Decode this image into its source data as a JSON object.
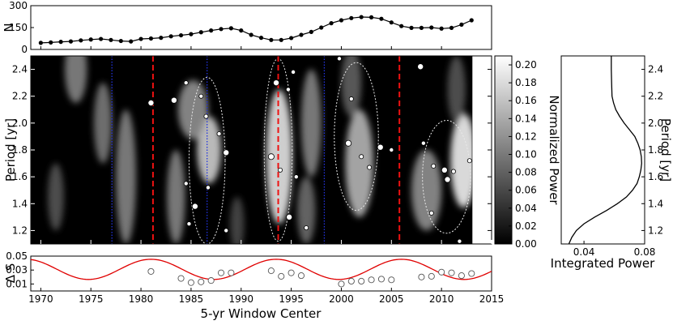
{
  "chart_data": [
    {
      "type": "line",
      "panel": "top",
      "ylabel": "N",
      "xlim": [
        1969,
        2015
      ],
      "ylim": [
        0,
        300
      ],
      "yticks": [
        "0",
        "150",
        "300"
      ],
      "x": [
        1970,
        1971,
        1972,
        1973,
        1974,
        1975,
        1976,
        1977,
        1978,
        1979,
        1980,
        1981,
        1982,
        1983,
        1984,
        1985,
        1986,
        1987,
        1988,
        1989,
        1990,
        1991,
        1992,
        1993,
        1994,
        1995,
        1996,
        1997,
        1998,
        1999,
        2000,
        2001,
        2002,
        2003,
        2004,
        2005,
        2006,
        2007,
        2008,
        2009,
        2010,
        2011,
        2012,
        2013
      ],
      "values": [
        45,
        48,
        52,
        55,
        62,
        68,
        72,
        65,
        58,
        55,
        72,
        75,
        80,
        90,
        97,
        105,
        118,
        130,
        140,
        145,
        130,
        100,
        80,
        65,
        65,
        78,
        100,
        120,
        150,
        180,
        200,
        215,
        222,
        220,
        210,
        185,
        160,
        148,
        148,
        150,
        143,
        148,
        170,
        200
      ]
    },
    {
      "type": "heatmap",
      "panel": "main",
      "xlabel": "5-yr Window Center",
      "ylabel": "Period [yr]",
      "xlim": [
        1969,
        2015
      ],
      "ylim": [
        1.1,
        2.5
      ],
      "xticks": [
        "1970",
        "1975",
        "1980",
        "1985",
        "1990",
        "1995",
        "2000",
        "2005",
        "2010",
        "2015"
      ],
      "yticks": [
        "1.2",
        "1.4",
        "1.6",
        "1.8",
        "2.0",
        "2.2",
        "2.4"
      ],
      "colorbar": {
        "label": "Normalized Power",
        "range": [
          0,
          0.21
        ],
        "ticks": [
          "0.00",
          "0.02",
          "0.04",
          "0.06",
          "0.08",
          "0.10",
          "0.12",
          "0.14",
          "0.16",
          "0.18",
          "0.20"
        ]
      },
      "red_dashed_lines_x": [
        1981.2,
        1993.7,
        2005.8
      ],
      "blue_dotted_lines_x": [
        1977.1,
        1986.6,
        1998.3,
        2013.8
      ],
      "ridges": [
        {
          "x": 1993.8,
          "y": 1.75,
          "amp": 0.95,
          "sx": 1.3,
          "sy": 0.5
        },
        {
          "x": 1986.8,
          "y": 1.8,
          "amp": 0.85,
          "sx": 1.2,
          "sy": 0.25
        },
        {
          "x": 1985.2,
          "y": 2.1,
          "amp": 0.6,
          "sx": 1.5,
          "sy": 0.22
        },
        {
          "x": 1983.5,
          "y": 1.45,
          "amp": 0.55,
          "sx": 0.9,
          "sy": 0.35
        },
        {
          "x": 1978.5,
          "y": 1.6,
          "amp": 0.55,
          "sx": 1.0,
          "sy": 0.5
        },
        {
          "x": 1976.2,
          "y": 2.0,
          "amp": 0.5,
          "sx": 0.9,
          "sy": 0.3
        },
        {
          "x": 1973.5,
          "y": 2.4,
          "amp": 0.55,
          "sx": 1.1,
          "sy": 0.25
        },
        {
          "x": 1971.5,
          "y": 1.45,
          "amp": 0.35,
          "sx": 0.8,
          "sy": 0.25
        },
        {
          "x": 1997.0,
          "y": 2.0,
          "amp": 0.55,
          "sx": 1.0,
          "sy": 0.4
        },
        {
          "x": 1996.5,
          "y": 1.35,
          "amp": 0.45,
          "sx": 0.9,
          "sy": 0.25
        },
        {
          "x": 2001.8,
          "y": 1.7,
          "amp": 0.75,
          "sx": 1.4,
          "sy": 0.4
        },
        {
          "x": 2001.0,
          "y": 2.3,
          "amp": 0.4,
          "sx": 1.0,
          "sy": 0.25
        },
        {
          "x": 2008.5,
          "y": 1.5,
          "amp": 0.6,
          "sx": 1.5,
          "sy": 0.3
        },
        {
          "x": 2012.2,
          "y": 1.72,
          "amp": 1.0,
          "sx": 1.3,
          "sy": 0.35
        },
        {
          "x": 2011.5,
          "y": 2.25,
          "amp": 0.35,
          "sx": 0.9,
          "sy": 0.25
        },
        {
          "x": 1989.6,
          "y": 1.25,
          "amp": 0.3,
          "sx": 0.7,
          "sy": 0.2
        }
      ],
      "contours": [
        {
          "x": 1993.7,
          "y": 1.8,
          "rx": 1.4,
          "ry": 0.68
        },
        {
          "x": 1986.6,
          "y": 1.72,
          "rx": 1.8,
          "ry": 0.62
        },
        {
          "x": 2001.5,
          "y": 1.9,
          "rx": 2.2,
          "ry": 0.55
        },
        {
          "x": 2010.5,
          "y": 1.6,
          "rx": 2.4,
          "ry": 0.42
        }
      ],
      "dots": [
        {
          "x": 1981.0,
          "y": 2.15
        },
        {
          "x": 1984.5,
          "y": 2.3
        },
        {
          "x": 1986.0,
          "y": 2.2
        },
        {
          "x": 1983.3,
          "y": 2.17
        },
        {
          "x": 1986.5,
          "y": 2.05
        },
        {
          "x": 1987.8,
          "y": 1.92
        },
        {
          "x": 1988.5,
          "y": 1.78
        },
        {
          "x": 1984.5,
          "y": 1.55
        },
        {
          "x": 1986.7,
          "y": 1.52
        },
        {
          "x": 1985.4,
          "y": 1.38
        },
        {
          "x": 1984.8,
          "y": 1.25
        },
        {
          "x": 1988.5,
          "y": 1.2
        },
        {
          "x": 1993.5,
          "y": 2.3
        },
        {
          "x": 1995.2,
          "y": 2.38
        },
        {
          "x": 1994.7,
          "y": 2.25
        },
        {
          "x": 1993.0,
          "y": 1.75
        },
        {
          "x": 1993.9,
          "y": 1.65
        },
        {
          "x": 1995.5,
          "y": 1.6
        },
        {
          "x": 1994.8,
          "y": 1.3
        },
        {
          "x": 1996.5,
          "y": 1.22
        },
        {
          "x": 2001.0,
          "y": 2.18
        },
        {
          "x": 2000.7,
          "y": 1.85
        },
        {
          "x": 2002.0,
          "y": 1.75
        },
        {
          "x": 2002.8,
          "y": 1.67
        },
        {
          "x": 2003.9,
          "y": 1.82
        },
        {
          "x": 2005.0,
          "y": 1.8
        },
        {
          "x": 1999.8,
          "y": 2.48
        },
        {
          "x": 2007.9,
          "y": 2.42
        },
        {
          "x": 2008.2,
          "y": 1.85
        },
        {
          "x": 2009.2,
          "y": 1.68
        },
        {
          "x": 2010.3,
          "y": 1.65
        },
        {
          "x": 2011.2,
          "y": 1.64
        },
        {
          "x": 2012.8,
          "y": 1.72
        },
        {
          "x": 2010.6,
          "y": 1.58
        },
        {
          "x": 2009.0,
          "y": 1.33
        },
        {
          "x": 2011.8,
          "y": 1.12
        }
      ]
    },
    {
      "type": "line",
      "panel": "side",
      "xlabel": "Integrated Power",
      "ylabel": "Period [yr]",
      "xlim": [
        0.025,
        0.08
      ],
      "ylim": [
        1.1,
        2.5
      ],
      "xticks": [
        "0.04",
        "0.08"
      ],
      "yticks": [
        "1.2",
        "1.4",
        "1.6",
        "1.8",
        "2.0",
        "2.2",
        "2.4"
      ],
      "y": [
        1.1,
        1.15,
        1.2,
        1.25,
        1.3,
        1.35,
        1.4,
        1.45,
        1.5,
        1.55,
        1.6,
        1.65,
        1.7,
        1.75,
        1.8,
        1.85,
        1.9,
        1.95,
        2.0,
        2.05,
        2.1,
        2.15,
        2.2,
        2.3,
        2.4,
        2.5
      ],
      "values": [
        0.03,
        0.032,
        0.035,
        0.04,
        0.047,
        0.055,
        0.062,
        0.068,
        0.072,
        0.075,
        0.0765,
        0.0775,
        0.078,
        0.0778,
        0.077,
        0.0755,
        0.0735,
        0.07,
        0.0665,
        0.0635,
        0.061,
        0.0595,
        0.0585,
        0.0582,
        0.058,
        0.058
      ]
    },
    {
      "type": "scatter",
      "panel": "bottom",
      "ylabel": "Δ S",
      "xlim": [
        1969,
        2015
      ],
      "ylim": [
        0,
        0.05
      ],
      "yticks": [
        "0.01",
        "0.03",
        "0.05"
      ],
      "points": [
        {
          "x": 1981,
          "y": 0.028
        },
        {
          "x": 1984,
          "y": 0.018
        },
        {
          "x": 1985,
          "y": 0.012
        },
        {
          "x": 1986,
          "y": 0.013
        },
        {
          "x": 1987,
          "y": 0.015
        },
        {
          "x": 1988,
          "y": 0.026
        },
        {
          "x": 1989,
          "y": 0.026
        },
        {
          "x": 1993,
          "y": 0.029
        },
        {
          "x": 1994,
          "y": 0.021
        },
        {
          "x": 1995,
          "y": 0.026
        },
        {
          "x": 1996,
          "y": 0.022
        },
        {
          "x": 2000,
          "y": 0.01
        },
        {
          "x": 2001,
          "y": 0.014
        },
        {
          "x": 2002,
          "y": 0.014
        },
        {
          "x": 2003,
          "y": 0.016
        },
        {
          "x": 2004,
          "y": 0.017
        },
        {
          "x": 2005,
          "y": 0.016
        },
        {
          "x": 2008,
          "y": 0.02
        },
        {
          "x": 2009,
          "y": 0.021
        },
        {
          "x": 2010,
          "y": 0.027
        },
        {
          "x": 2011,
          "y": 0.026
        },
        {
          "x": 2012,
          "y": 0.022
        },
        {
          "x": 2013,
          "y": 0.025
        }
      ],
      "fit": {
        "mean": 0.031,
        "amplitude": 0.0145,
        "period": 12.5,
        "phase_x": 1968.5,
        "color": "#e00000"
      }
    }
  ]
}
